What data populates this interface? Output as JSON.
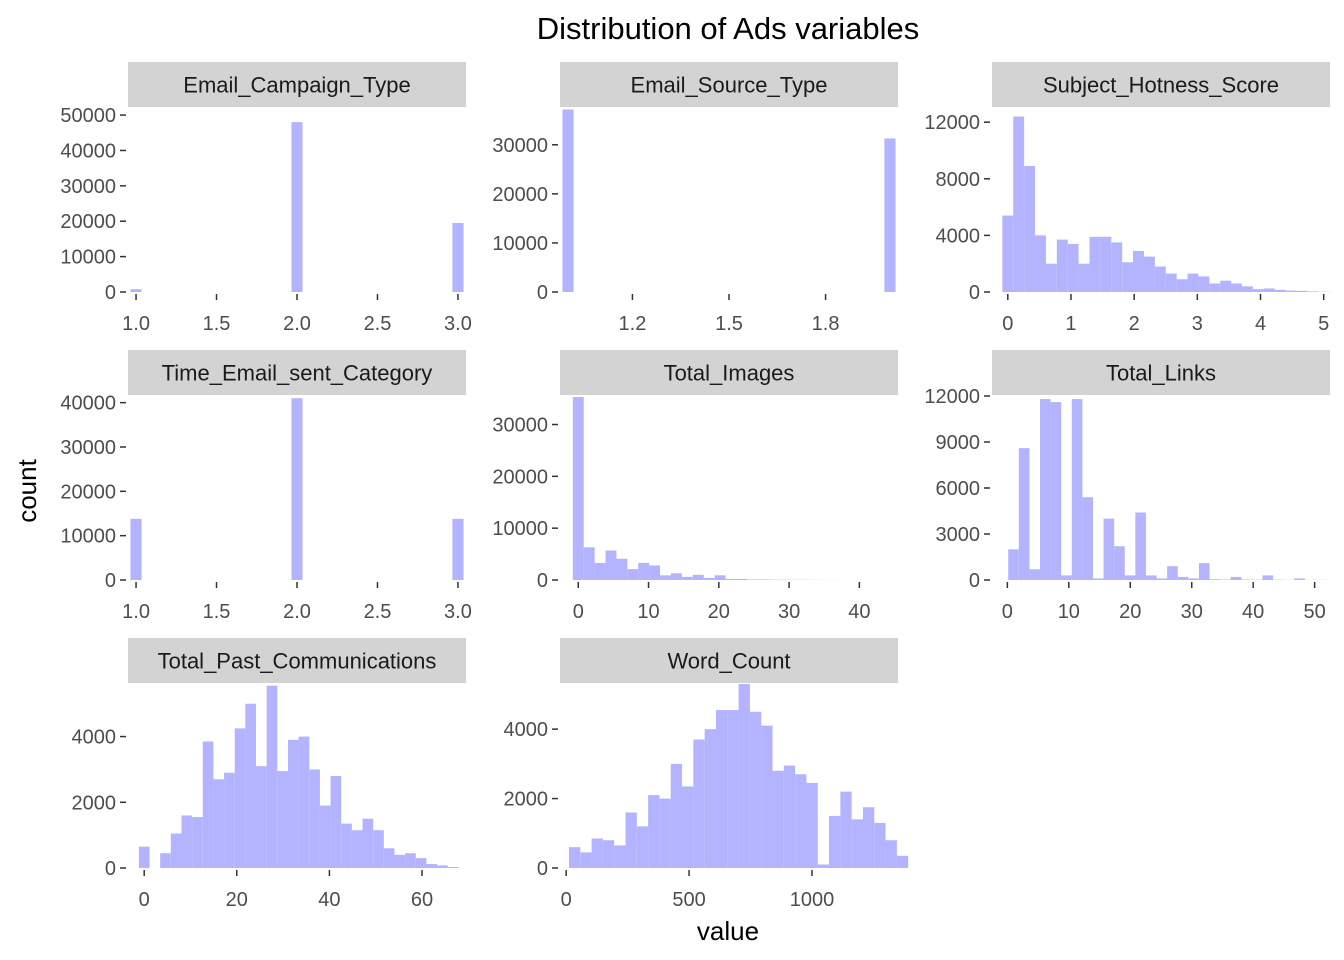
{
  "chart_data": {
    "type": "bar",
    "title": "Distribution of Ads variables",
    "xlabel": "value",
    "ylabel": "count",
    "bar_color": "#b3b3ff",
    "strip_color": "#d3d3d3",
    "panels": [
      {
        "name": "Email_Campaign_Type",
        "xlim": [
          0.95,
          3.05
        ],
        "ylim": [
          0,
          52000
        ],
        "x_ticks": [
          1.0,
          1.5,
          2.0,
          2.5,
          3.0
        ],
        "x_tick_labels": [
          "1.0",
          "1.5",
          "2.0",
          "2.5",
          "3.0"
        ],
        "y_ticks": [
          0,
          10000,
          20000,
          30000,
          40000,
          50000
        ],
        "y_tick_labels": [
          "0",
          "10000",
          "20000",
          "30000",
          "40000",
          "50000"
        ],
        "bars": [
          [
            1.0,
            800
          ],
          [
            2.0,
            48000
          ],
          [
            3.0,
            19500
          ]
        ],
        "bin_width": 0.069
      },
      {
        "name": "Email_Source_Type",
        "xlim": [
          0.975,
          2.025
        ],
        "ylim": [
          0,
          37500
        ],
        "x_ticks": [
          1.2,
          1.5,
          1.8
        ],
        "x_tick_labels": [
          "1.2",
          "1.5",
          "1.8"
        ],
        "y_ticks": [
          0,
          10000,
          20000,
          30000
        ],
        "y_tick_labels": [
          "0",
          "10000",
          "20000",
          "30000"
        ],
        "bars": [
          [
            1.0,
            37200
          ],
          [
            2.0,
            31300
          ]
        ],
        "bin_width": 0.0345
      },
      {
        "name": "Subject_Hotness_Score",
        "xlim": [
          -0.25,
          5.1
        ],
        "ylim": [
          0,
          13000
        ],
        "x_ticks": [
          0,
          1,
          2,
          3,
          4,
          5
        ],
        "x_tick_labels": [
          "0",
          "1",
          "2",
          "3",
          "4",
          "5"
        ],
        "y_ticks": [
          0,
          4000,
          8000,
          12000
        ],
        "y_tick_labels": [
          "0",
          "4000",
          "8000",
          "12000"
        ],
        "histogram": {
          "start": -0.086,
          "bin_width": 0.1724,
          "counts": [
            5400,
            12400,
            8900,
            4000,
            2000,
            3700,
            3400,
            2000,
            3900,
            3900,
            3500,
            2100,
            2900,
            2500,
            1800,
            1300,
            900,
            1300,
            1100,
            600,
            800,
            600,
            400,
            200,
            250,
            150,
            100,
            80,
            40,
            20
          ]
        }
      },
      {
        "name": "Time_Email_sent_Category",
        "xlim": [
          0.95,
          3.05
        ],
        "ylim": [
          0,
          41500
        ],
        "x_ticks": [
          1.0,
          1.5,
          2.0,
          2.5,
          3.0
        ],
        "x_tick_labels": [
          "1.0",
          "1.5",
          "2.0",
          "2.5",
          "3.0"
        ],
        "y_ticks": [
          0,
          10000,
          20000,
          30000,
          40000
        ],
        "y_tick_labels": [
          "0",
          "10000",
          "20000",
          "30000",
          "40000"
        ],
        "bars": [
          [
            1.0,
            13800
          ],
          [
            2.0,
            41000
          ],
          [
            3.0,
            13800
          ]
        ],
        "bin_width": 0.069
      },
      {
        "name": "Total_Images",
        "xlim": [
          -2.6,
          45.5
        ],
        "ylim": [
          0,
          35500
        ],
        "x_ticks": [
          0,
          10,
          20,
          30,
          40
        ],
        "x_tick_labels": [
          "0",
          "10",
          "20",
          "30",
          "40"
        ],
        "y_ticks": [
          0,
          10000,
          20000,
          30000
        ],
        "y_tick_labels": [
          "0",
          "10000",
          "20000",
          "30000"
        ],
        "histogram": {
          "start": -0.776,
          "bin_width": 1.552,
          "counts": [
            35300,
            6300,
            3300,
            5700,
            4100,
            2100,
            3300,
            2800,
            900,
            1300,
            600,
            1000,
            400,
            900,
            200,
            200,
            100,
            100,
            60,
            50,
            40,
            30,
            20,
            10,
            10,
            5,
            5,
            3,
            2,
            2
          ]
        }
      },
      {
        "name": "Total_Links",
        "xlim": [
          -2.5,
          52.5
        ],
        "ylim": [
          0,
          12000
        ],
        "x_ticks": [
          0,
          10,
          20,
          30,
          40,
          50
        ],
        "x_tick_labels": [
          "0",
          "10",
          "20",
          "30",
          "40",
          "50"
        ],
        "y_ticks": [
          0,
          3000,
          6000,
          9000,
          12000
        ],
        "y_tick_labels": [
          "0",
          "3000",
          "6000",
          "9000",
          "12000"
        ],
        "histogram": {
          "start": 0.138,
          "bin_width": 1.724,
          "counts": [
            2000,
            8600,
            700,
            11800,
            11600,
            300,
            11800,
            5400,
            100,
            4000,
            2200,
            300,
            4400,
            300,
            100,
            900,
            200,
            100,
            1100,
            50,
            30,
            200,
            30,
            20,
            300,
            20,
            10,
            100,
            10,
            10
          ]
        }
      },
      {
        "name": "Total_Past_Communications",
        "xlim": [
          -3.5,
          69.5
        ],
        "ylim": [
          0,
          5600
        ],
        "x_ticks": [
          0,
          20,
          40,
          60
        ],
        "x_tick_labels": [
          "0",
          "20",
          "40",
          "60"
        ],
        "y_ticks": [
          0,
          2000,
          4000
        ],
        "y_tick_labels": [
          "0",
          "2000",
          "4000"
        ],
        "histogram": {
          "start": -1.15,
          "bin_width": 2.3,
          "counts": [
            650,
            0,
            450,
            1050,
            1600,
            1550,
            3850,
            2700,
            2900,
            4250,
            5000,
            3100,
            5550,
            2950,
            3900,
            4000,
            3000,
            1900,
            2800,
            1350,
            1150,
            1500,
            1150,
            600,
            400,
            450,
            300,
            120,
            80,
            30
          ]
        }
      },
      {
        "name": "Word_Count",
        "xlim": [
          -25,
          1350
        ],
        "ylim": [
          0,
          5300
        ],
        "x_ticks": [
          0,
          500,
          1000
        ],
        "x_tick_labels": [
          "0",
          "500",
          "1000"
        ],
        "y_ticks": [
          0,
          2000,
          4000
        ],
        "y_tick_labels": [
          "0",
          "2000",
          "4000"
        ],
        "histogram": {
          "start": 11.5,
          "bin_width": 46,
          "counts": [
            600,
            450,
            850,
            800,
            650,
            1600,
            1200,
            2100,
            2000,
            3000,
            2350,
            3700,
            4000,
            4550,
            4550,
            5300,
            4500,
            4100,
            2800,
            2950,
            2700,
            2450,
            100,
            1500,
            2200,
            1400,
            1750,
            1300,
            800,
            350
          ]
        }
      }
    ]
  }
}
